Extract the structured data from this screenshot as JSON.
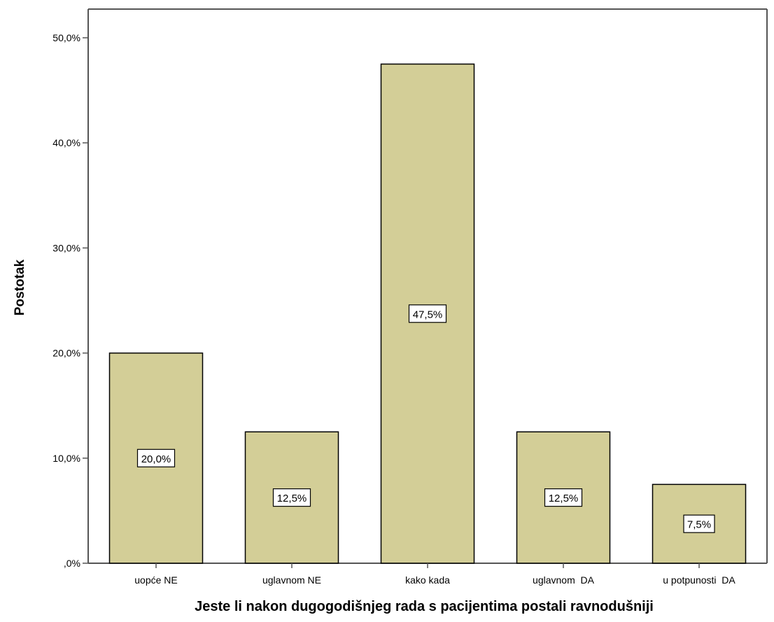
{
  "chart_data": {
    "type": "bar",
    "categories": [
      "uopće NE",
      "uglavnom NE",
      "kako kada",
      "uglavnom  DA",
      "u potpunosti  DA"
    ],
    "values": [
      20.0,
      12.5,
      47.5,
      12.5,
      7.5
    ],
    "data_labels": [
      "20,0%",
      "12,5%",
      "47,5%",
      "12,5%",
      "7,5%"
    ],
    "y_ticks": [
      0,
      10,
      20,
      30,
      40,
      50
    ],
    "y_tick_labels": [
      ",0%",
      "10,0%",
      "20,0%",
      "30,0%",
      "40,0%",
      "50,0%"
    ],
    "title": "",
    "xlabel": "Jeste li nakon dugogodišnjeg rada s pacijentima postali ravnodušniji",
    "ylabel": "Postotak",
    "ylim": [
      0,
      50
    ],
    "grid": false,
    "colors": {
      "bar_fill": "#d3ce97",
      "bar_stroke": "#000000",
      "axis": "#555555"
    }
  }
}
